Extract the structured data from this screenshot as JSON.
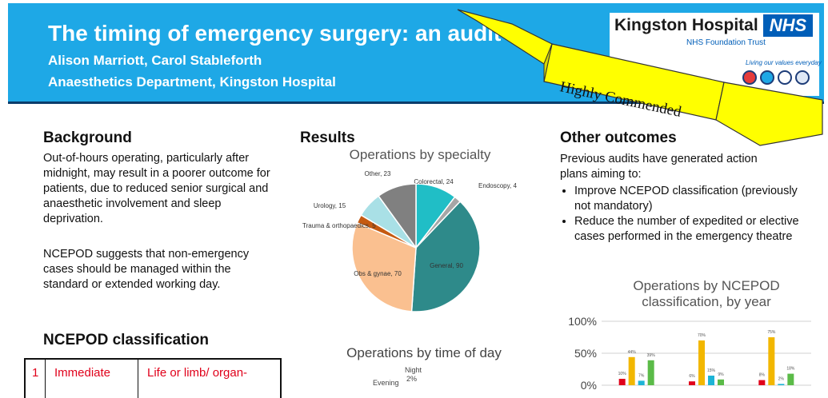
{
  "header": {
    "title": "The timing of emergency surgery: an audit",
    "authors": "Alison Marriott, Carol Stableforth",
    "department": "Anaesthetics Department, Kingston Hospital",
    "logo_name": "Kingston Hospital",
    "logo_nhs": "NHS",
    "logo_trust": "NHS Foundation Trust",
    "logo_values": "Living our values everyday",
    "ribbon": "Highly Commended"
  },
  "background": {
    "heading": "Background",
    "para1": "Out-of-hours operating, particularly after midnight, may result in a poorer outcome for patients, due to reduced senior surgical and anaesthetic involvement and sleep deprivation.",
    "para2": "NCEPOD suggests that non-emergency cases should be managed within the standard or extended working day."
  },
  "ncepod": {
    "heading": "NCEPOD classification",
    "row1": {
      "num": "1",
      "name": "Immediate",
      "desc": "Life or limb/ organ-"
    }
  },
  "results": {
    "heading": "Results",
    "chart2_title": "Operations by time of day",
    "chart2_labels": [
      "Night",
      "2%",
      "Evening"
    ]
  },
  "other": {
    "heading": "Other outcomes",
    "intro": "Previous audits have generated action plans aiming to:",
    "bullets": [
      "Improve NCEPOD classification (previously not mandatory)",
      "Reduce the number of expedited or elective cases performed in the emergency theatre"
    ]
  },
  "chart_data": [
    {
      "type": "pie",
      "title": "Operations by specialty",
      "slices": [
        {
          "label": "Colorectal, 24",
          "value": 24,
          "color": "#20bec6"
        },
        {
          "label": "Endoscopy, 4",
          "value": 4,
          "color": "#a6a6a6"
        },
        {
          "label": "General, 90",
          "value": 90,
          "color": "#2e8a8a"
        },
        {
          "label": "Obs & gynae, 70",
          "value": 70,
          "color": "#fac090"
        },
        {
          "label": "Trauma & orthopaedics, 5",
          "value": 5,
          "color": "#c55a11"
        },
        {
          "label": "Urology, 15",
          "value": 15,
          "color": "#a9e0e6"
        },
        {
          "label": "Other, 23",
          "value": 23,
          "color": "#808080"
        }
      ]
    },
    {
      "type": "bar",
      "title": "Operations by NCEPOD classification, by year",
      "yticks": [
        "100%",
        "50%",
        "0%"
      ],
      "ylim": [
        0,
        100
      ],
      "series_colors": [
        "#e0001a",
        "#f2b700",
        "#1db4d6",
        "#5bbb48"
      ],
      "groups": [
        {
          "values": [
            10,
            44,
            7,
            39
          ],
          "labels": [
            "10%",
            "44%",
            "7%",
            "39%"
          ]
        },
        {
          "values": [
            6,
            70,
            15,
            9
          ],
          "labels": [
            "6%",
            "70%",
            "15%",
            "9%"
          ]
        },
        {
          "values": [
            8,
            75,
            2,
            18
          ],
          "labels": [
            "8%",
            "75%",
            "2%",
            "18%"
          ]
        }
      ]
    }
  ]
}
